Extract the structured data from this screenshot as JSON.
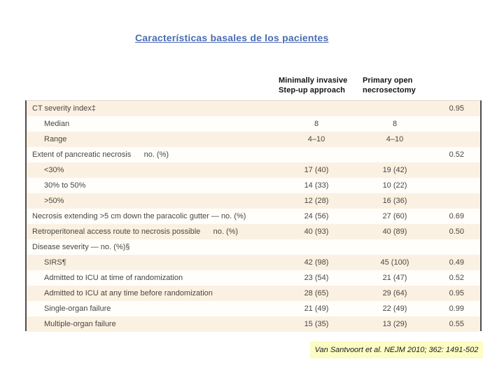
{
  "slide": {
    "title": "Características basales de los pacientes",
    "citation": "Van Santvoort et al. NEJM 2010; 362: 1491-502"
  },
  "columns": {
    "group1": "Minimally invasive\nStep-up approach",
    "group2": "Primary open\nnecrosectomy"
  },
  "table": {
    "rows": [
      {
        "label": "CT severity index‡",
        "indent": 0,
        "v1": "",
        "v2": "",
        "p": "0.95"
      },
      {
        "label": "Median",
        "indent": 1,
        "v1": "8",
        "v2": "8",
        "p": ""
      },
      {
        "label": "Range",
        "indent": 1,
        "v1": "4–10",
        "v2": "4–10",
        "p": ""
      },
      {
        "label": "Extent of pancreatic necrosis      no. (%)",
        "indent": 0,
        "v1": "",
        "v2": "",
        "p": "0.52"
      },
      {
        "label": "<30%",
        "indent": 1,
        "v1": "17 (40)",
        "v2": "19 (42)",
        "p": ""
      },
      {
        "label": "30% to 50%",
        "indent": 1,
        "v1": "14 (33)",
        "v2": "10 (22)",
        "p": ""
      },
      {
        "label": ">50%",
        "indent": 1,
        "v1": "12 (28)",
        "v2": "16 (36)",
        "p": ""
      },
      {
        "label": "Necrosis extending >5 cm down the paracolic gutter — no. (%)",
        "indent": 0,
        "v1": "24 (56)",
        "v2": "27 (60)",
        "p": "0.69"
      },
      {
        "label": "Retroperitoneal access route to necrosis possible      no. (%)",
        "indent": 0,
        "v1": "40 (93)",
        "v2": "40 (89)",
        "p": "0.50"
      },
      {
        "label": "Disease severity — no. (%)§",
        "indent": 0,
        "v1": "",
        "v2": "",
        "p": ""
      },
      {
        "label": "SIRS¶",
        "indent": 1,
        "v1": "42 (98)",
        "v2": "45 (100)",
        "p": "0.49"
      },
      {
        "label": "Admitted to ICU at time of randomization",
        "indent": 1,
        "v1": "23 (54)",
        "v2": "21 (47)",
        "p": "0.52"
      },
      {
        "label": "Admitted to ICU at any time before randomization",
        "indent": 1,
        "v1": "28 (65)",
        "v2": "29 (64)",
        "p": "0.95"
      },
      {
        "label": "Single-organ failure",
        "indent": 1,
        "v1": "21 (49)",
        "v2": "22 (49)",
        "p": "0.99"
      },
      {
        "label": "Multiple-organ failure",
        "indent": 1,
        "v1": "15 (35)",
        "v2": "13 (29)",
        "p": "0.55"
      }
    ]
  },
  "colors": {
    "title_blue": "#4a6cb4",
    "row_cream": "#fbf1e2",
    "table_border": "#4c4c4c",
    "table_text": "#4a463f",
    "citation_highlight": "#fcfcc4"
  }
}
